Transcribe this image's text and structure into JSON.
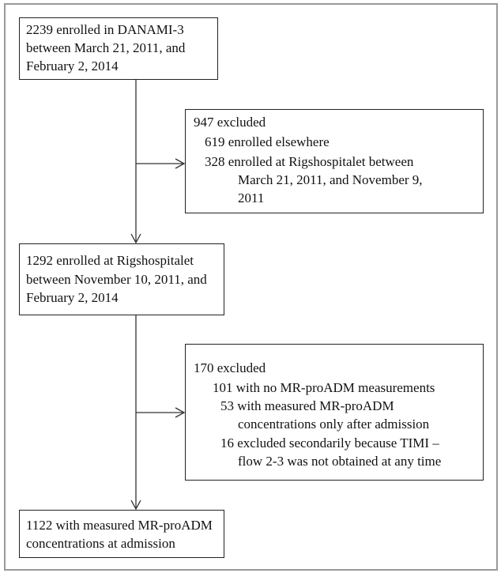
{
  "nodes": [
    {
      "lines": [
        "2239 enrolled in DANAMI-3",
        "between March 21, 2011, and",
        "February 2, 2014"
      ]
    },
    {
      "lines": [
        "947 excluded",
        "619 enrolled elsewhere",
        "328 enrolled at Rigshospitalet  between",
        "March 21, 2011, and November 9,",
        "2011"
      ]
    },
    {
      "lines": [
        "1292 enrolled at Rigshospitalet",
        "between November 10, 2011, and",
        "February 2, 2014"
      ]
    },
    {
      "lines": [
        "170 excluded",
        "101 with no MR-proADM measurements",
        "53 with measured MR-proADM",
        "concentrations only after admission",
        "16 excluded secondarily because TIMI –",
        "flow 2-3 was not obtained at any time"
      ]
    },
    {
      "lines": [
        "1122 with measured MR-proADM",
        "concentrations at admission"
      ]
    }
  ]
}
